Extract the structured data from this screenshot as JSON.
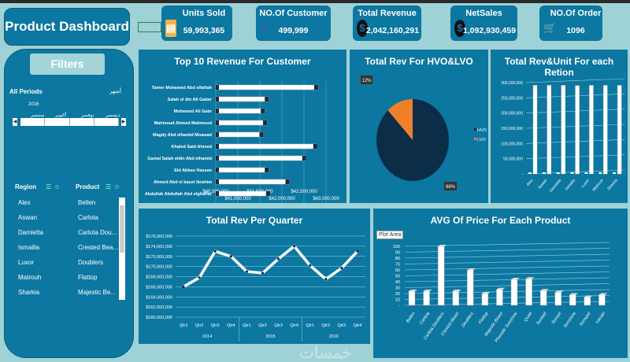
{
  "header": {
    "title": "Product Dashboard"
  },
  "kpis": [
    {
      "label": "Units Sold",
      "value": "59,993,365",
      "icon": "invoice-icon"
    },
    {
      "label": "NO.Of Customer",
      "value": "499,999",
      "icon": "customers-icon"
    },
    {
      "label": "Total Revenue",
      "value": "2,042,160,291",
      "icon": "dollar-icon"
    },
    {
      "label": "NetSales",
      "value": "1,092,930,459",
      "icon": "dollar-icon"
    },
    {
      "label": "NO.Of Order",
      "value": "1096",
      "icon": "cart-icon"
    }
  ],
  "filters": {
    "title": "Filters",
    "timeline": {
      "label": "All Periods",
      "level": "أشهر",
      "year": "2016",
      "months": [
        "سبتمبر",
        "أكتوبر",
        "نوفمبر",
        "ديسمبر"
      ]
    },
    "region": {
      "header": "Region",
      "items": [
        "Alex",
        "Aswan",
        "Damietta",
        "Ismailia",
        "Luxor",
        "Matrouh",
        "Sharkia"
      ]
    },
    "product": {
      "header": "Product",
      "items": [
        "Bellen",
        "Carlota",
        "Carlota Dou...",
        "Crested Bea...",
        "Doublers",
        "Flattop",
        "Majestic Be..."
      ]
    }
  },
  "colors": {
    "panel": "#0c77a0",
    "background": "#9fd2d6",
    "hvo": "#0b2d48",
    "lvo": "#f07f2a"
  },
  "watermark": "خمسات",
  "chart_data": [
    {
      "type": "bar",
      "orientation": "horizontal",
      "title": "Top 10 Revenue For Customer",
      "categories": [
        "Tamer Mohamed Abd elfattah",
        "Salah el din Ali Gaber",
        "Mohamed Ali Gabr",
        "Mahmoud Ahmed Mahmoud",
        "Magdy Abd elhamid Moawad",
        "Khaled Said Ahmed",
        "Gamal Salah eldin Abd elhamid",
        "Eid Abbas Hassan",
        "Ahmed Abd el baset Ibrahim",
        "Abdullah Abdullah Abd elghaffar"
      ],
      "values": [
        42820000,
        41700000,
        41610000,
        41660000,
        41580000,
        42800000,
        42550000,
        41700000,
        42170000,
        41730000
      ],
      "xlim": [
        40500000,
        43000000
      ],
      "xticks": [
        "$40,500,000",
        "$41,000,000",
        "$41,500,000",
        "$42,000,000",
        "$42,500,000",
        "$43,000,000"
      ],
      "grid": true
    },
    {
      "type": "pie",
      "title": "Total Rev For HVO&LVO",
      "series": [
        {
          "name": "HVO",
          "value": 88,
          "label": "88%"
        },
        {
          "name": "LVO",
          "value": 12,
          "label": "12%"
        }
      ],
      "legend": "right"
    },
    {
      "type": "bar",
      "title": "Total Rev&Unit For each Retion",
      "categories": [
        "Alex",
        "Aswan",
        "Damietta",
        "Ismailia",
        "Luxor",
        "Matrouh",
        "Sharkia"
      ],
      "series": [
        {
          "values": [
            5000000,
            5000000,
            5000000,
            5000000,
            5000000,
            5000000,
            5000000
          ]
        },
        {
          "values": [
            291000000,
            291000000,
            291000000,
            290000000,
            291000000,
            291000000,
            291000000
          ]
        }
      ],
      "ylim": [
        0,
        300000000
      ],
      "yticks": [
        "-",
        "50,000,000",
        "100,000,000",
        "150,000,000",
        "200,000,000",
        "250,000,000",
        "300,000,000"
      ],
      "grid": true
    },
    {
      "type": "line",
      "title": "Total Rev Per Quarter",
      "categories": [
        "Qtr1",
        "Qtr2",
        "Qtr3",
        "Qtr4",
        "Qtr1",
        "Qtr2",
        "Qtr3",
        "Qtr4",
        "Qtr1",
        "Qtr2",
        "Qtr3",
        "Qtr4"
      ],
      "groups": [
        "2014",
        "2015",
        "2016"
      ],
      "values": [
        166000000,
        167800000,
        173000000,
        172000000,
        169000000,
        168700000,
        171500000,
        174000000,
        170200000,
        167500000,
        169700000,
        173000000
      ],
      "ylim": [
        160000000,
        176000000
      ],
      "yticks": [
        "$160,000,000",
        "$162,000,000",
        "$164,000,000",
        "$166,000,000",
        "$168,000,000",
        "$170,000,000",
        "$172,000,000",
        "$174,000,000",
        "$176,000,000"
      ],
      "grid": true
    },
    {
      "type": "bar",
      "title": "AVG Of Price For Each Product",
      "categories": [
        "Bellen",
        "Carlota",
        "Carlota Doublers",
        "Crested Beaut",
        "Doublers",
        "Flattop",
        "Majestic Beaut",
        "Phenolic Sunshine",
        "Quad",
        "Sunbell",
        "Sunset",
        "Sunshine",
        "Sunspot",
        "Vanaki"
      ],
      "values": [
        24,
        24,
        100,
        24,
        60,
        20,
        27,
        44,
        45,
        25,
        22,
        18,
        14,
        18
      ],
      "ylim": [
        0,
        100
      ],
      "yticks": [
        "-",
        "10",
        "20",
        "30",
        "40",
        "50",
        "60",
        "70",
        "80",
        "90",
        "100"
      ],
      "grid": true,
      "tooltip": "Plot Area"
    }
  ]
}
